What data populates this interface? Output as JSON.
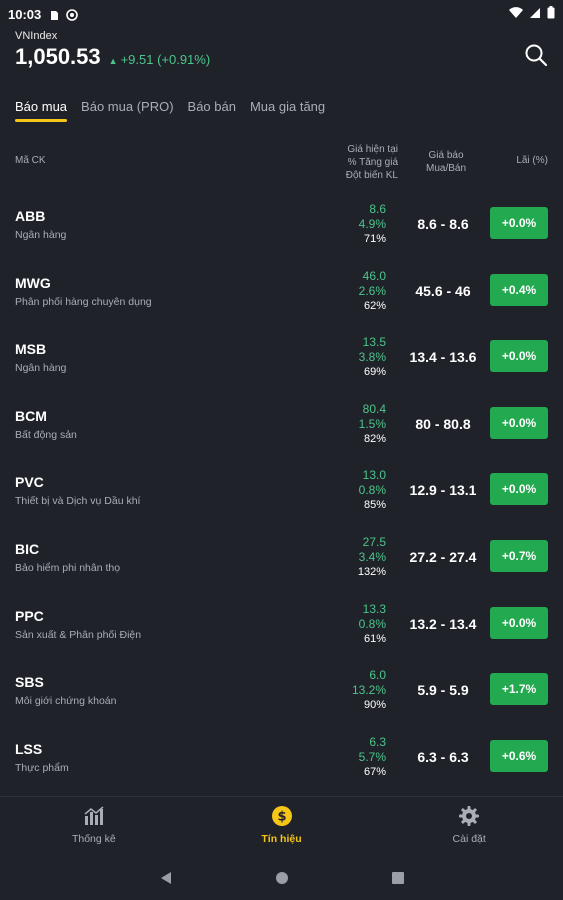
{
  "status": {
    "time": "10:03"
  },
  "index": {
    "name": "VNIndex",
    "value": "1,050.53",
    "change": "+9.51 (+0.91%)"
  },
  "tabs": [
    {
      "label": "Báo mua",
      "active": true
    },
    {
      "label": "Báo mua (PRO)",
      "active": false
    },
    {
      "label": "Báo bán",
      "active": false
    },
    {
      "label": "Mua gia tăng",
      "active": false
    }
  ],
  "columns": {
    "code": "Mã CK",
    "price_line1": "Giá hiện tại",
    "price_line2": "% Tăng giá",
    "price_line3": "Đột biến KL",
    "buy_line1": "Giá báo",
    "buy_line2": "Mua/Bán",
    "profit": "Lãi (%)"
  },
  "rows": [
    {
      "code": "ABB",
      "sector": "Ngân hàng",
      "price": "8.6",
      "pct": "4.9%",
      "vol": "71%",
      "range": "8.6 - 8.6",
      "profit": "+0.0%"
    },
    {
      "code": "MWG",
      "sector": "Phân phối hàng chuyên dụng",
      "price": "46.0",
      "pct": "2.6%",
      "vol": "62%",
      "range": "45.6 - 46",
      "profit": "+0.4%"
    },
    {
      "code": "MSB",
      "sector": "Ngân hàng",
      "price": "13.5",
      "pct": "3.8%",
      "vol": "69%",
      "range": "13.4 - 13.6",
      "profit": "+0.0%"
    },
    {
      "code": "BCM",
      "sector": "Bất động sản",
      "price": "80.4",
      "pct": "1.5%",
      "vol": "82%",
      "range": "80 - 80.8",
      "profit": "+0.0%"
    },
    {
      "code": "PVC",
      "sector": "Thiết bị và Dịch vụ Dầu khí",
      "price": "13.0",
      "pct": "0.8%",
      "vol": "85%",
      "range": "12.9 - 13.1",
      "profit": "+0.0%"
    },
    {
      "code": "BIC",
      "sector": "Bảo hiểm phi nhân thọ",
      "price": "27.5",
      "pct": "3.4%",
      "vol": "132%",
      "range": "27.2 - 27.4",
      "profit": "+0.7%"
    },
    {
      "code": "PPC",
      "sector": "Sản xuất & Phân phối Điện",
      "price": "13.3",
      "pct": "0.8%",
      "vol": "61%",
      "range": "13.2 - 13.4",
      "profit": "+0.0%"
    },
    {
      "code": "SBS",
      "sector": "Môi giới chứng khoán",
      "price": "6.0",
      "pct": "13.2%",
      "vol": "90%",
      "range": "5.9 - 5.9",
      "profit": "+1.7%"
    },
    {
      "code": "LSS",
      "sector": "Thực phẩm",
      "price": "6.3",
      "pct": "5.7%",
      "vol": "67%",
      "range": "6.3 - 6.3",
      "profit": "+0.6%"
    }
  ],
  "nav": [
    {
      "label": "Thống kê",
      "icon": "chart-icon",
      "active": false
    },
    {
      "label": "Tín hiệu",
      "icon": "dollar-icon",
      "active": true
    },
    {
      "label": "Cài đặt",
      "icon": "gear-icon",
      "active": false
    }
  ],
  "colors": {
    "accent": "#f5c518",
    "up": "#4cc58a",
    "profit_bg": "#23a94f",
    "background": "#1f2229"
  }
}
